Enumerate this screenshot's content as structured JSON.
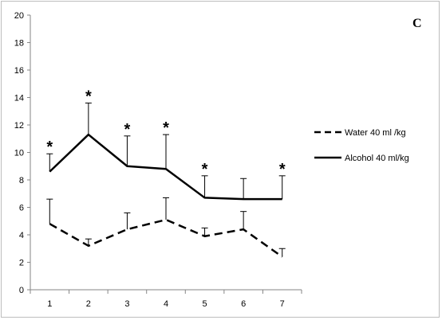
{
  "chart_data": {
    "type": "line",
    "panel_label": "C",
    "x": [
      1,
      2,
      3,
      4,
      5,
      6,
      7
    ],
    "ylim": [
      0,
      20
    ],
    "y_ticks": [
      0,
      2,
      4,
      6,
      8,
      10,
      12,
      14,
      16,
      18,
      20
    ],
    "grid": false,
    "legend_position": "right",
    "series": [
      {
        "name": "Water 40 ml /kg",
        "style": "dashed",
        "color": "#000000",
        "values": [
          4.8,
          3.2,
          4.4,
          5.1,
          3.9,
          4.4,
          2.4
        ],
        "error_upper": [
          6.6,
          3.7,
          5.6,
          6.7,
          4.5,
          5.7,
          3.0
        ],
        "significance": [
          "",
          "",
          "",
          "",
          "",
          "",
          ""
        ]
      },
      {
        "name": "Alcohol  40  ml/kg",
        "style": "solid",
        "color": "#000000",
        "values": [
          8.6,
          11.3,
          9.0,
          8.8,
          6.7,
          6.6,
          6.6
        ],
        "error_upper": [
          9.9,
          13.6,
          11.2,
          11.3,
          8.3,
          8.1,
          8.3
        ],
        "significance": [
          "*",
          "*",
          "*",
          "*",
          "*",
          "",
          "*"
        ]
      }
    ]
  }
}
